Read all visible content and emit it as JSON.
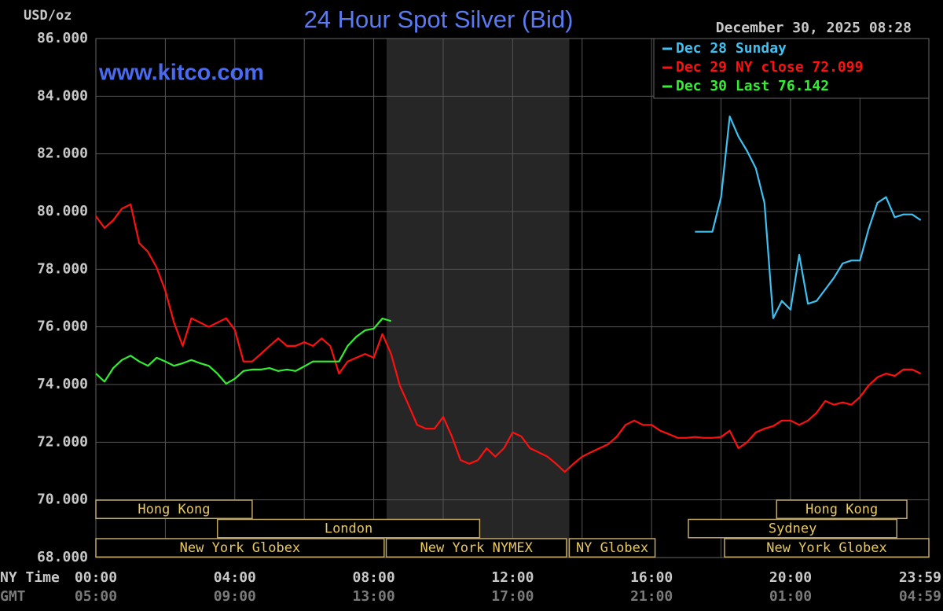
{
  "chart_data": {
    "type": "line",
    "title": "24 Hour Spot Silver (Bid)",
    "y_label": "USD/oz",
    "watermark": "www.kitco.com",
    "timestamp": "December 30, 2025 08:28",
    "x_label": "NY Time",
    "x2_label": "GMT",
    "x": [
      0,
      0.25,
      0.5,
      0.75,
      1,
      1.25,
      1.5,
      1.75,
      2,
      2.25,
      2.5,
      2.75,
      3,
      3.25,
      3.5,
      3.75,
      4,
      4.25,
      4.5,
      4.75,
      5,
      5.25,
      5.5,
      5.75,
      6,
      6.25,
      6.5,
      6.75,
      7,
      7.25,
      7.5,
      7.75,
      8,
      8.25,
      8.5,
      8.75,
      9,
      9.25,
      9.5,
      9.75,
      10,
      10.25,
      10.5,
      10.75,
      11,
      11.25,
      11.5,
      11.75,
      12,
      12.25,
      12.5,
      12.75,
      13,
      13.25,
      13.5,
      13.75,
      14,
      14.25,
      14.5,
      14.75,
      15,
      15.25,
      15.5,
      15.75,
      16,
      16.25,
      16.5,
      16.75,
      17,
      17.25,
      17.5,
      17.75,
      18,
      18.25,
      18.5,
      18.75,
      19,
      19.25,
      19.5,
      19.75,
      20,
      20.25,
      20.5,
      20.75,
      21,
      21.25,
      21.5,
      21.75,
      22,
      22.25,
      22.5,
      22.75,
      23,
      23.25,
      23.5,
      23.75
    ],
    "series": [
      {
        "name": "Dec 28 Sunday",
        "color": "#3ec0f0",
        "values": [
          null,
          null,
          null,
          null,
          null,
          null,
          null,
          null,
          null,
          null,
          null,
          null,
          null,
          null,
          null,
          null,
          null,
          null,
          null,
          null,
          null,
          null,
          null,
          null,
          null,
          null,
          null,
          null,
          null,
          null,
          null,
          null,
          null,
          null,
          null,
          null,
          null,
          null,
          null,
          null,
          null,
          null,
          null,
          null,
          null,
          null,
          null,
          null,
          null,
          null,
          null,
          null,
          null,
          null,
          null,
          null,
          null,
          null,
          null,
          null,
          null,
          null,
          null,
          null,
          null,
          null,
          null,
          null,
          null,
          79.3,
          79.3,
          79.3,
          80.5,
          83.3,
          82.6,
          82.1,
          81.5,
          80.3,
          76.3,
          76.9,
          76.6,
          78.5,
          76.8,
          76.9,
          77.3,
          77.7,
          78.2,
          78.3,
          78.3,
          79.4,
          80.3,
          80.5,
          79.8,
          79.9,
          79.9,
          79.7
        ]
      },
      {
        "name": "Dec 29 NY close 72.099",
        "color": "#ff1010",
        "values": [
          79.84,
          79.43,
          79.7,
          80.1,
          80.25,
          78.9,
          78.6,
          78.06,
          77.25,
          76.15,
          75.34,
          76.3,
          76.15,
          76.0,
          76.15,
          76.3,
          75.9,
          74.8,
          74.8,
          75.06,
          75.34,
          75.6,
          75.34,
          75.34,
          75.47,
          75.34,
          75.6,
          75.34,
          74.38,
          74.8,
          74.93,
          75.06,
          74.93,
          75.75,
          75.06,
          73.97,
          73.3,
          72.6,
          72.47,
          72.47,
          72.88,
          72.2,
          71.38,
          71.25,
          71.38,
          71.79,
          71.5,
          71.79,
          72.34,
          72.2,
          71.79,
          71.65,
          71.5,
          71.25,
          70.97,
          71.25,
          71.5,
          71.65,
          71.79,
          71.93,
          72.2,
          72.6,
          72.75,
          72.6,
          72.6,
          72.4,
          72.28,
          72.15,
          72.15,
          72.18,
          72.15,
          72.15,
          72.18,
          72.4,
          71.79,
          72.0,
          72.34,
          72.47,
          72.56,
          72.75,
          72.75,
          72.6,
          72.75,
          73.02,
          73.43,
          73.3,
          73.38,
          73.3,
          73.57,
          73.97,
          74.25,
          74.38,
          74.3,
          74.52,
          74.52,
          74.38
        ]
      },
      {
        "name": "Dec 30 Last 76.142",
        "color": "#33ee33",
        "values": [
          74.38,
          74.1,
          74.57,
          74.85,
          75.0,
          74.8,
          74.65,
          74.93,
          74.8,
          74.65,
          74.74,
          74.85,
          74.74,
          74.65,
          74.38,
          74.03,
          74.2,
          74.47,
          74.52,
          74.52,
          74.57,
          74.47,
          74.52,
          74.47,
          74.63,
          74.8,
          74.8,
          74.8,
          74.8,
          75.34,
          75.66,
          75.88,
          75.94,
          76.29,
          76.2,
          null,
          null,
          null,
          null,
          null,
          null,
          null,
          null,
          null,
          null,
          null,
          null,
          null,
          null,
          null,
          null,
          null,
          null,
          null,
          null,
          null,
          null,
          null,
          null,
          null,
          null,
          null,
          null,
          null,
          null,
          null,
          null,
          null,
          null,
          null,
          null,
          null,
          null,
          null,
          null,
          null,
          null,
          null,
          null,
          null,
          null,
          null,
          null,
          null,
          null,
          null,
          null,
          null,
          null,
          null,
          null,
          null,
          null,
          null,
          null,
          null
        ]
      }
    ],
    "xlim": [
      0,
      23.983
    ],
    "ylim": [
      68,
      86
    ],
    "yticks": [
      {
        "value": 68,
        "label": "68.000"
      },
      {
        "value": 70,
        "label": "70.000"
      },
      {
        "value": 72,
        "label": "72.000"
      },
      {
        "value": 74,
        "label": "74.000"
      },
      {
        "value": 76,
        "label": "76.000"
      },
      {
        "value": 78,
        "label": "78.000"
      },
      {
        "value": 80,
        "label": "80.000"
      },
      {
        "value": 82,
        "label": "82.000"
      },
      {
        "value": 84,
        "label": "84.000"
      },
      {
        "value": 86,
        "label": "86.000"
      }
    ],
    "xticks": [
      {
        "value": 0,
        "label": "00:00"
      },
      {
        "value": 4,
        "label": "04:00"
      },
      {
        "value": 8,
        "label": "08:00"
      },
      {
        "value": 12,
        "label": "12:00"
      },
      {
        "value": 16,
        "label": "16:00"
      },
      {
        "value": 20,
        "label": "20:00"
      },
      {
        "value": 23.983,
        "label": "23:59"
      }
    ],
    "xticks2": [
      {
        "value": 0,
        "label": "05:00"
      },
      {
        "value": 4,
        "label": "09:00"
      },
      {
        "value": 8,
        "label": "13:00"
      },
      {
        "value": 12,
        "label": "17:00"
      },
      {
        "value": 16,
        "label": "21:00"
      },
      {
        "value": 20,
        "label": "01:00"
      },
      {
        "value": 23.983,
        "label": "04:59"
      }
    ],
    "xgrid": [
      0,
      2,
      4,
      6,
      8,
      10,
      12,
      14,
      16,
      18,
      20,
      22
    ],
    "highlight_x": [
      8.37,
      13.63
    ],
    "grid": true,
    "legend": "top-right",
    "sessions": [
      [
        {
          "label": "Hong Kong",
          "start": 0,
          "end": 4.5
        },
        {
          "label": "Hong Kong",
          "start": 19.6,
          "end": 23.35
        }
      ],
      [
        {
          "label": "London",
          "start": 3.5,
          "end": 11.05
        },
        {
          "label": "Sydney",
          "start": 17.06,
          "end": 23.06
        }
      ],
      [
        {
          "label": "New York Globex",
          "start": 0,
          "end": 8.3
        },
        {
          "label": "New York NYMEX",
          "start": 8.36,
          "end": 13.55
        },
        {
          "label": "NY Globex",
          "start": 13.63,
          "end": 16.1
        },
        {
          "label": "New York Globex",
          "start": 18.1,
          "end": 23.983
        }
      ]
    ]
  }
}
